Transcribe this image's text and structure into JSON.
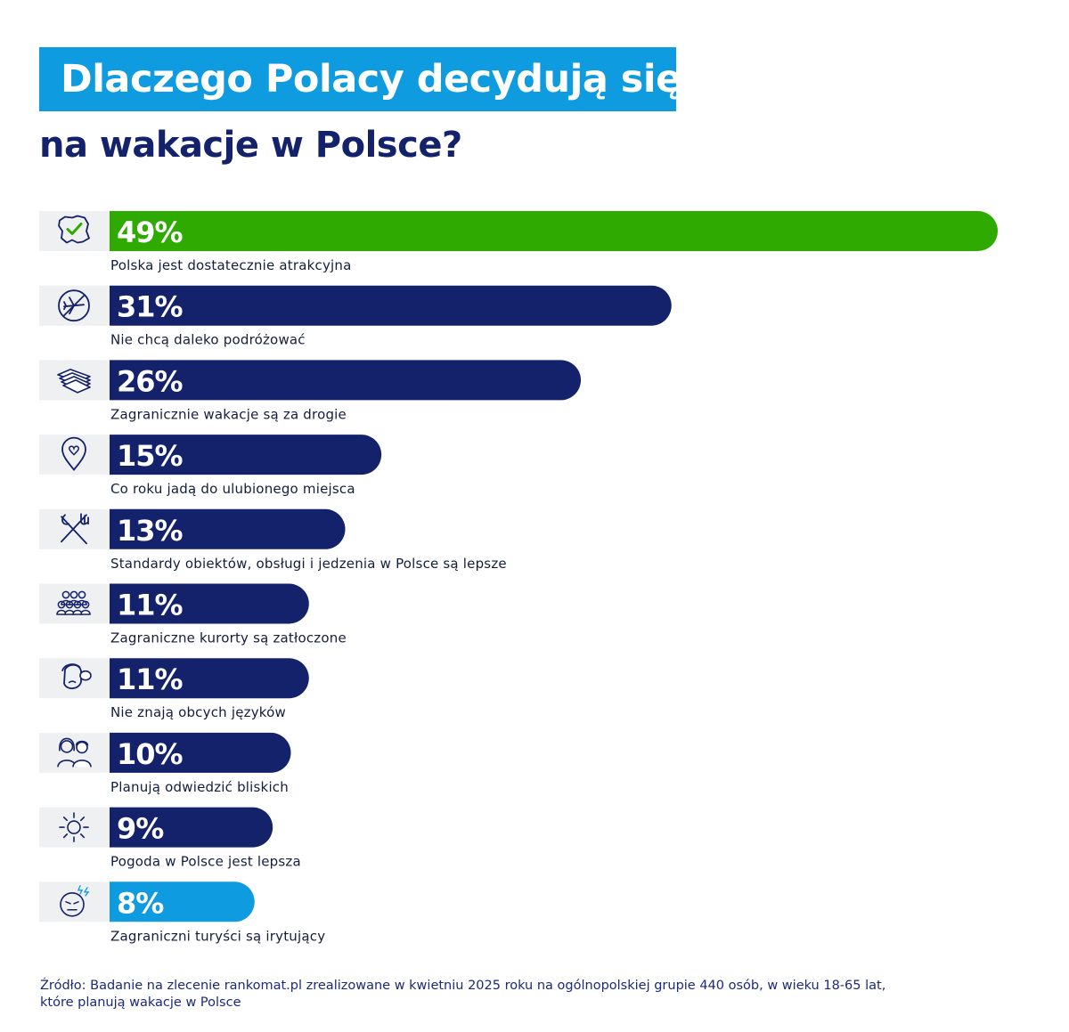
{
  "title": {
    "line1": "Dlaczego Polacy decydują się",
    "line2": "na wakacje w Polsce?"
  },
  "colors": {
    "green": "#2eaa00",
    "navy": "#14216b",
    "light_blue": "#0f9bdf",
    "icon_box": "#eff0f2",
    "icon_stroke": "#14216b"
  },
  "chart_data": {
    "type": "bar",
    "orientation": "horizontal",
    "unit": "%",
    "categories": [
      "Polska jest dostatecznie atrakcyjna",
      "Nie chcą daleko podróżować",
      "Zagranicznie wakacje są za drogie",
      "Co roku jadą do ulubionego miejsca",
      "Standardy obiektów, obsługi i jedzenia w Polsce są lepsze",
      "Zagraniczne kurorty są zatłoczone",
      "Nie znają obcych języków",
      "Planują odwiedzić bliskich",
      "Pogoda w Polsce jest lepsza",
      "Zagraniczni turyści są irytujący"
    ],
    "values": [
      49,
      31,
      26,
      15,
      13,
      11,
      11,
      10,
      9,
      8
    ],
    "value_labels": [
      "49%",
      "31%",
      "26%",
      "15%",
      "13%",
      "11%",
      "11%",
      "10%",
      "9%",
      "8%"
    ],
    "bar_colors": [
      "green",
      "navy",
      "navy",
      "navy",
      "navy",
      "navy",
      "navy",
      "navy",
      "navy",
      "light_blue"
    ],
    "icons": [
      "poland-map-check-icon",
      "no-plane-icon",
      "money-stack-icon",
      "heart-pin-icon",
      "fork-knife-icon",
      "crowd-icon",
      "speech-face-icon",
      "couple-icon",
      "sun-icon",
      "irritated-face-icon"
    ],
    "xlim": [
      0,
      49
    ],
    "grid": false,
    "legend": "none"
  },
  "source": {
    "line1": "Źródło:  Badanie na zlecenie rankomat.pl zrealizowane w kwietniu 2025 roku na ogólnopolskiej grupie 440 osób, w wieku 18-65 lat,",
    "line2": "które planują wakacje w Polsce"
  }
}
